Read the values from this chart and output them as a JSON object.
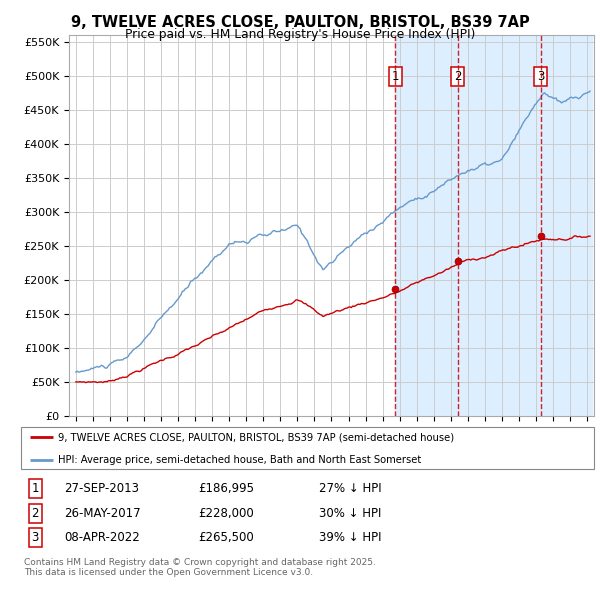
{
  "title1": "9, TWELVE ACRES CLOSE, PAULTON, BRISTOL, BS39 7AP",
  "title2": "Price paid vs. HM Land Registry's House Price Index (HPI)",
  "legend_label_red": "9, TWELVE ACRES CLOSE, PAULTON, BRISTOL, BS39 7AP (semi-detached house)",
  "legend_label_blue": "HPI: Average price, semi-detached house, Bath and North East Somerset",
  "sales": [
    {
      "num": 1,
      "date": "27-SEP-2013",
      "price": 186995,
      "pct": "27% ↓ HPI",
      "year": 2013.74
    },
    {
      "num": 2,
      "date": "26-MAY-2017",
      "price": 228000,
      "pct": "30% ↓ HPI",
      "year": 2017.4
    },
    {
      "num": 3,
      "date": "08-APR-2022",
      "price": 265500,
      "pct": "39% ↓ HPI",
      "year": 2022.27
    }
  ],
  "footnote": "Contains HM Land Registry data © Crown copyright and database right 2025.\nThis data is licensed under the Open Government Licence v3.0.",
  "red_color": "#cc0000",
  "blue_color": "#6699cc",
  "bg_color": "#ffffff",
  "grid_color": "#cccccc",
  "highlight_color": "#ddeeff",
  "ylim": [
    0,
    560000
  ],
  "yticks": [
    0,
    50000,
    100000,
    150000,
    200000,
    250000,
    300000,
    350000,
    400000,
    450000,
    500000,
    550000
  ]
}
